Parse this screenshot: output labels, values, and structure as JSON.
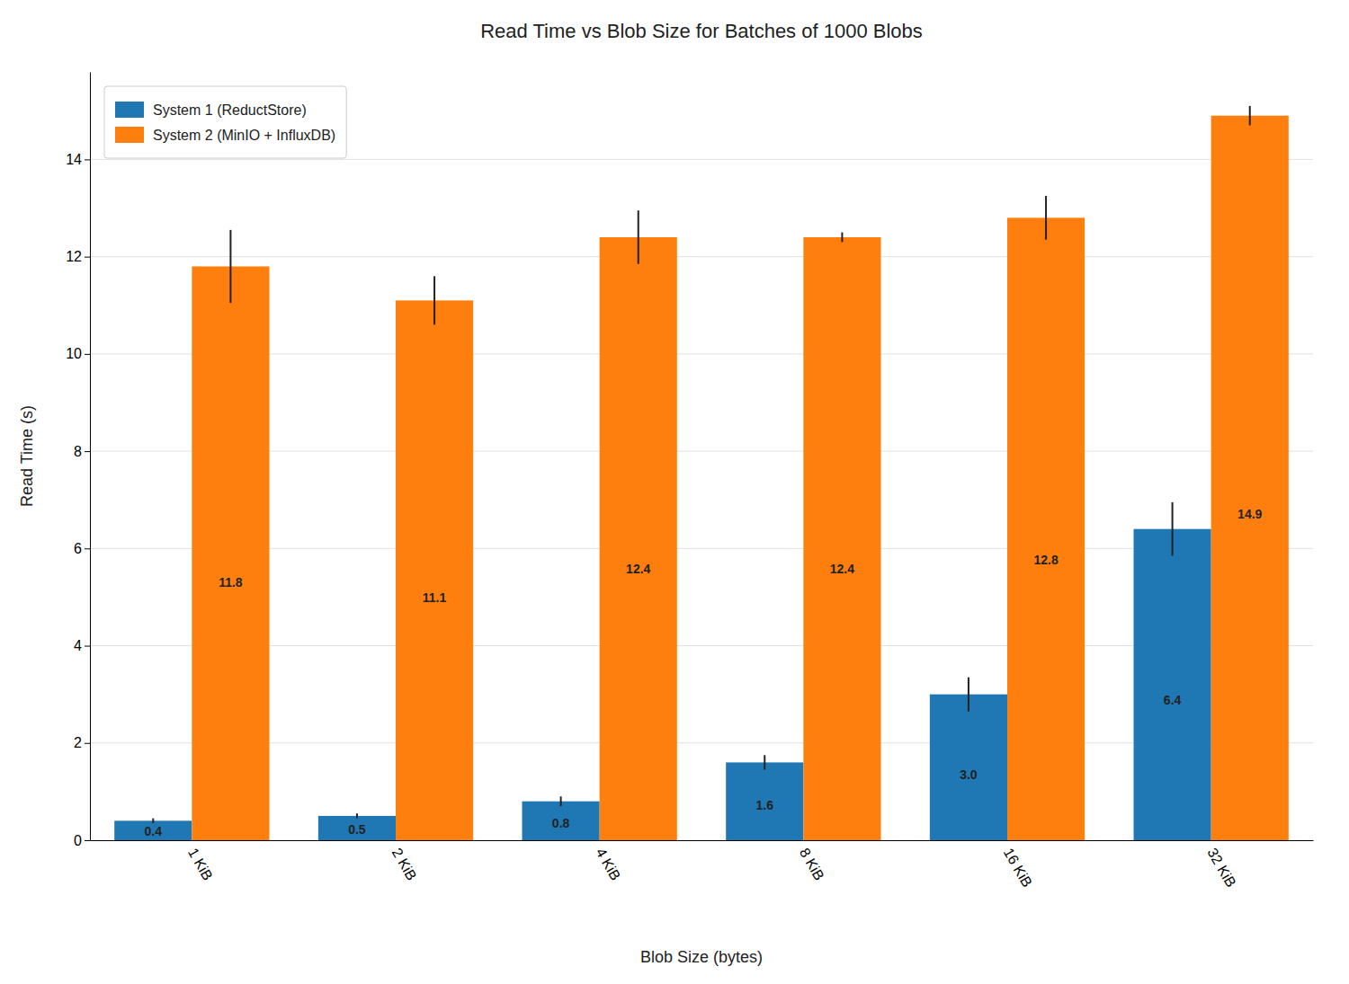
{
  "chart_data": {
    "type": "bar",
    "title": "Read Time vs Blob Size for Batches of 1000 Blobs",
    "xlabel": "Blob Size (bytes)",
    "ylabel": "Read Time (s)",
    "categories": [
      "1 KiB",
      "2 KiB",
      "4 KiB",
      "8 KiB",
      "16 KiB",
      "32 KiB"
    ],
    "series": [
      {
        "name": "System 1 (ReductStore)",
        "values": [
          0.4,
          0.5,
          0.8,
          1.6,
          3.0,
          6.4
        ],
        "value_labels": [
          "0.4",
          "0.5",
          "0.8",
          "1.6",
          "3.0",
          "6.4"
        ],
        "errors": [
          0.05,
          0.05,
          0.1,
          0.15,
          0.35,
          0.55
        ]
      },
      {
        "name": "System 2 (MinIO + InfluxDB)",
        "values": [
          11.8,
          11.1,
          12.4,
          12.4,
          12.8,
          14.9
        ],
        "errors": [
          0.75,
          0.5,
          0.55,
          0.1,
          0.45,
          0.2
        ]
      }
    ],
    "ylim": [
      0,
      15.8
    ],
    "yticks": [
      0,
      2,
      4,
      6,
      8,
      10,
      12,
      14
    ],
    "grid": true,
    "legend": "upper left",
    "data_labels": true
  }
}
